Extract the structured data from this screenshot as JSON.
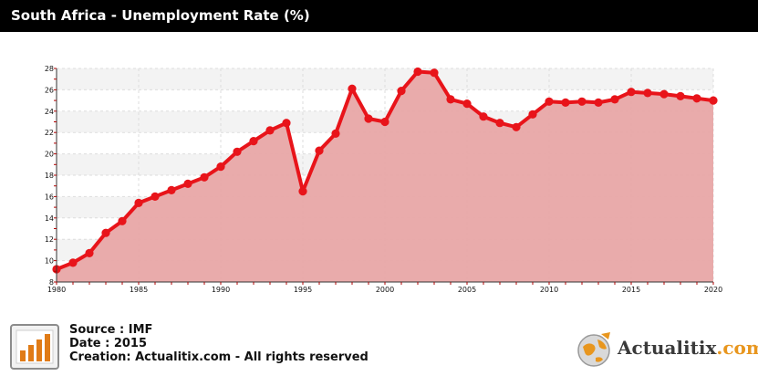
{
  "header": {
    "title": "South Africa - Unemployment Rate (%)"
  },
  "chart_data": {
    "type": "area",
    "title": "South Africa - Unemployment Rate (%)",
    "xlabel": "",
    "ylabel": "",
    "x": [
      1980,
      1981,
      1982,
      1983,
      1984,
      1985,
      1986,
      1987,
      1988,
      1989,
      1990,
      1991,
      1992,
      1993,
      1994,
      1995,
      1996,
      1997,
      1998,
      1999,
      2000,
      2001,
      2002,
      2003,
      2004,
      2005,
      2006,
      2007,
      2008,
      2009,
      2010,
      2011,
      2012,
      2013,
      2014,
      2015,
      2016,
      2017,
      2018,
      2019,
      2020
    ],
    "series": [
      {
        "values": [
          9.2,
          9.8,
          10.7,
          12.6,
          13.7,
          15.4,
          16.0,
          16.6,
          17.2,
          17.8,
          18.8,
          20.2,
          21.2,
          22.2,
          22.9,
          16.5,
          20.3,
          21.9,
          26.1,
          23.3,
          23.0,
          25.9,
          27.7,
          27.6,
          25.1,
          24.7,
          23.5,
          22.9,
          22.5,
          23.7,
          24.9,
          24.8,
          24.9,
          24.8,
          25.1,
          25.8,
          25.7,
          25.6,
          25.4,
          25.2,
          25.0
        ]
      }
    ],
    "xlim": [
      1980,
      2020
    ],
    "ylim": [
      8,
      28
    ],
    "xticks": [
      "1980",
      "1985",
      "1990",
      "1995",
      "2000",
      "2005",
      "2010",
      "2015",
      "2020"
    ],
    "yticks": [
      "8",
      "10",
      "12",
      "14",
      "16",
      "18",
      "20",
      "22",
      "24",
      "26",
      "28"
    ],
    "grid": true,
    "colors": {
      "line": "#e8141a",
      "area": "#e8a7a7"
    }
  },
  "footer": {
    "source": "Source : IMF",
    "date": "Date : 2015",
    "creation": "Creation: Actualitix.com - All rights reserved",
    "icon": "bar-chart-icon"
  },
  "brand": {
    "name_main": "Actualitix",
    "name_suffix": ".com",
    "logo": "globe-icon"
  }
}
